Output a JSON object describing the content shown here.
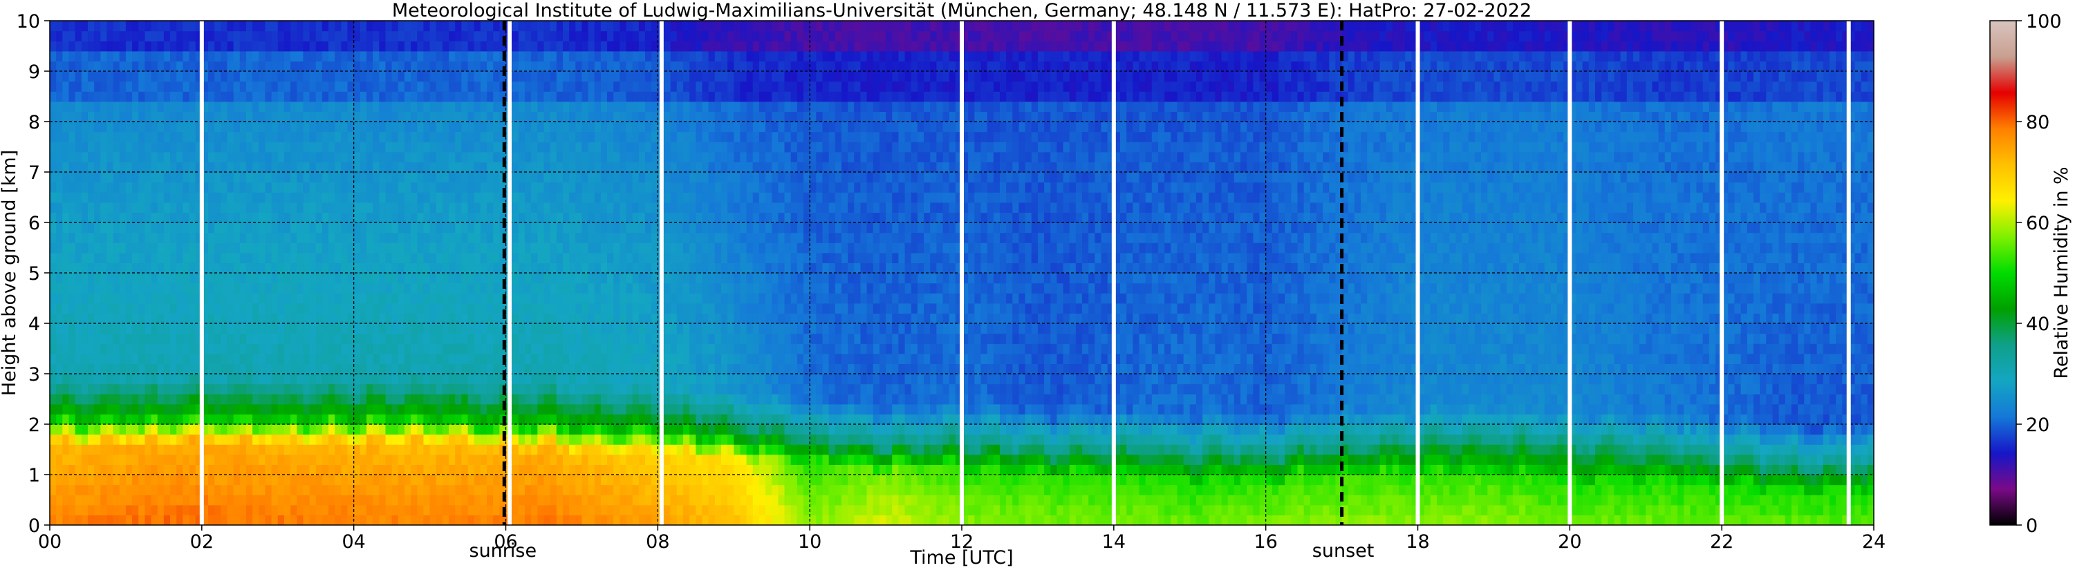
{
  "chart_data": {
    "type": "heatmap",
    "title": "Meteorological Institute of Ludwig-Maximilians-Universität (München, Germany; 48.148 N / 11.573 E):    HatPro: 27-02-2022",
    "xlabel": "Time [UTC]",
    "ylabel": "Height above ground [km]",
    "xlim": [
      0,
      24
    ],
    "ylim": [
      0,
      10
    ],
    "x_ticks": [
      0,
      2,
      4,
      6,
      8,
      10,
      12,
      14,
      16,
      18,
      20,
      22,
      24
    ],
    "x_tick_labels": [
      "00",
      "02",
      "04",
      "06",
      "08",
      "10",
      "12",
      "14",
      "16",
      "18",
      "20",
      "22",
      "24"
    ],
    "y_ticks": [
      0,
      1,
      2,
      3,
      4,
      5,
      6,
      7,
      8,
      9,
      10
    ],
    "y_tick_labels": [
      "0",
      "1",
      "2",
      "3",
      "4",
      "5",
      "6",
      "7",
      "8",
      "9",
      "10"
    ],
    "grid": true,
    "colorbar": {
      "label": "Relative Humidity in %",
      "range": [
        0,
        100
      ],
      "ticks": [
        0,
        20,
        40,
        60,
        80,
        100
      ],
      "tick_labels": [
        "0",
        "20",
        "40",
        "60",
        "80",
        "100"
      ],
      "colors": [
        "#000000",
        "#7a0a88",
        "#1616c8",
        "#1578d8",
        "#14a6c2",
        "#0fa08a",
        "#00a000",
        "#00dc00",
        "#7ff000",
        "#fff000",
        "#ffc000",
        "#ff8000",
        "#e50000",
        "#c8a090",
        "#d9c4be"
      ]
    },
    "white_gap_times": [
      2.0,
      6.05,
      8.05,
      12.0,
      14.0,
      18.0,
      20.0,
      22.0,
      23.67
    ],
    "sunrise": {
      "time": 5.98,
      "label": "sunrise"
    },
    "sunset": {
      "time": 17.0,
      "label": "sunset"
    },
    "rh_column_anchors": {
      "times": [
        0,
        1.5,
        3,
        5,
        6.5,
        8,
        9,
        10,
        11,
        12,
        13,
        14,
        15,
        16,
        17,
        18,
        19,
        20,
        21,
        22,
        23,
        24
      ],
      "surface_rh": [
        78,
        80,
        79,
        78,
        79,
        75,
        72,
        58,
        62,
        58,
        57,
        57,
        56,
        57,
        58,
        58,
        58,
        56,
        56,
        56,
        55,
        55
      ],
      "boundary_layer_top_km": [
        2.1,
        2.1,
        2.1,
        2.1,
        2.0,
        1.9,
        1.8,
        1.7,
        1.6,
        1.6,
        1.5,
        1.5,
        1.4,
        1.4,
        1.5,
        1.5,
        1.5,
        1.4,
        1.4,
        1.3,
        1.2,
        1.2
      ],
      "mid_troposphere_rh": [
        31,
        31,
        31,
        31,
        31,
        29,
        26,
        21,
        20,
        21,
        19,
        20,
        21,
        20,
        22,
        24,
        24,
        24,
        22,
        21,
        19,
        19
      ],
      "upper_troposphere_rh": [
        20,
        20,
        20,
        20,
        20,
        19,
        16,
        15,
        15,
        15,
        15,
        15,
        15,
        15,
        17,
        18,
        18,
        18,
        17,
        17,
        18,
        18
      ]
    }
  }
}
